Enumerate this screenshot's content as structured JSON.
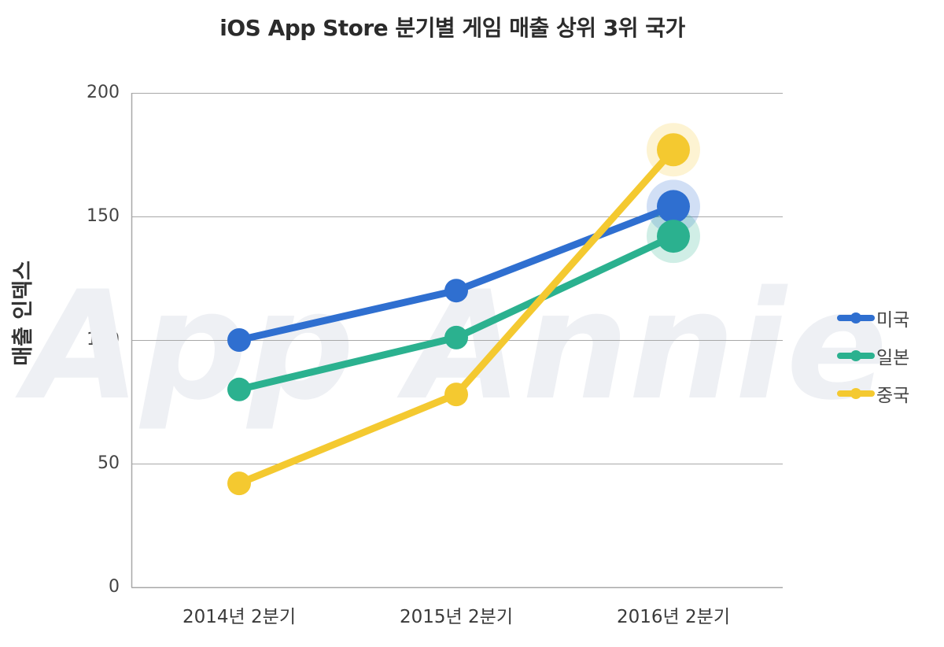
{
  "chart_data": {
    "type": "line",
    "title": "iOS App Store 분기별 게임 매출 상위 3위 국가",
    "xlabel": "",
    "ylabel": "매출 인덱스",
    "categories": [
      "2014년 2분기",
      "2015년 2분기",
      "2016년 2분기"
    ],
    "ylim": [
      0,
      200
    ],
    "yticks": [
      0,
      50,
      100,
      150,
      200
    ],
    "grid": true,
    "legend_position": "right",
    "series": [
      {
        "name": "미국",
        "color": "#2f6fd0",
        "values": [
          100,
          120,
          154
        ]
      },
      {
        "name": "일본",
        "color": "#2bb18f",
        "values": [
          80,
          101,
          142
        ]
      },
      {
        "name": "중국",
        "color": "#f4c930",
        "values": [
          42,
          78,
          177
        ]
      }
    ],
    "watermark": "App Annie"
  },
  "title": "iOS App Store 분기별 게임 매출 상위 3위 국가",
  "y_axis": {
    "label": "매출 인덱스",
    "ticks": [
      "200",
      "150",
      "100",
      "50",
      "0"
    ]
  },
  "x_axis": {
    "ticks": [
      "2014년 2분기",
      "2015년 2분기",
      "2016년 2분기"
    ]
  },
  "legend": {
    "items": [
      {
        "label": "미국",
        "color": "#2f6fd0"
      },
      {
        "label": "일본",
        "color": "#2bb18f"
      },
      {
        "label": "중국",
        "color": "#f4c930"
      }
    ]
  },
  "watermark": "App Annie"
}
